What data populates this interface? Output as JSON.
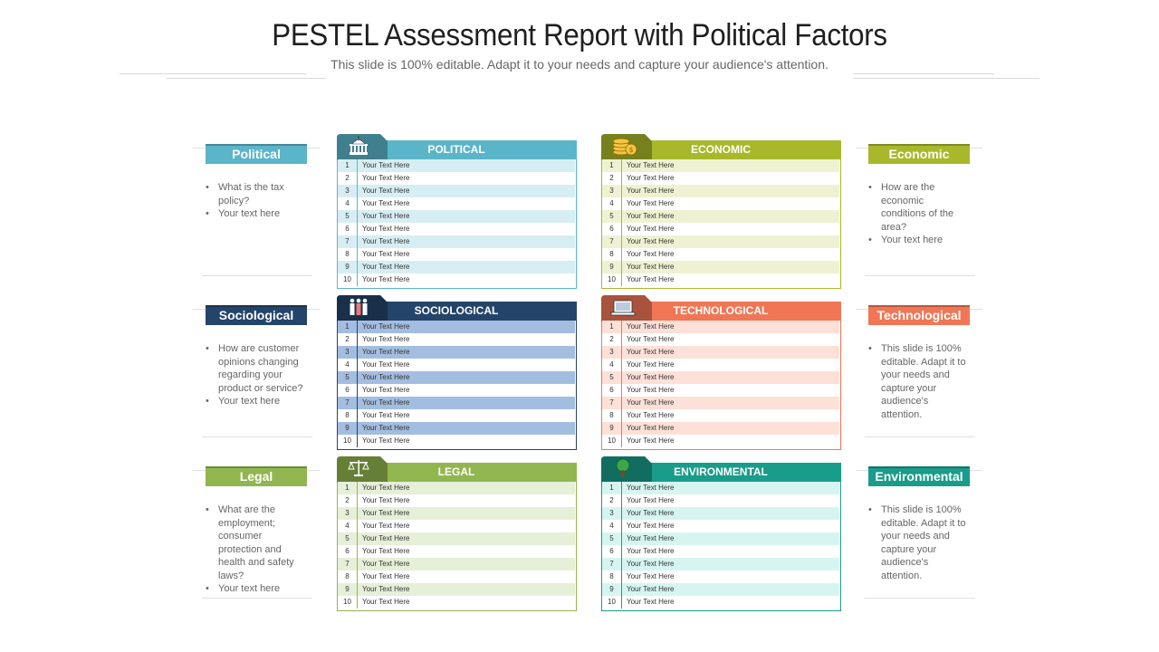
{
  "header": {
    "title": "PESTEL Assessment Report with Political Factors",
    "subtitle": "This slide is 100% editable. Adapt it to your needs and capture your audience's attention."
  },
  "colors": {
    "political": "#5bb5c9",
    "political_stripe": "#d6eef3",
    "economic": "#a9b82a",
    "economic_stripe": "#eff2d2",
    "sociological": "#24446a",
    "sociological_stripe": "#a3bde0",
    "technological": "#f07656",
    "technological_stripe": "#fde0d8",
    "legal": "#91b64f",
    "legal_stripe": "#e6efd8",
    "environmental": "#1a9c8a",
    "environmental_stripe": "#d6f5f1"
  },
  "side": {
    "political": {
      "label": "Political",
      "bullets": [
        "What is the tax policy?",
        "Your text here"
      ]
    },
    "sociological": {
      "label": "Sociological",
      "bullets": [
        "How are customer opinions changing regarding your product or service?",
        "Your text here"
      ]
    },
    "legal": {
      "label": "Legal",
      "bullets": [
        "What are the employment; consumer protection and health and safety laws?",
        "Your text here"
      ]
    },
    "economic": {
      "label": "Economic",
      "bullets": [
        "How are the economic conditions of the area?",
        "Your text here"
      ]
    },
    "technological": {
      "label": "Technological",
      "bullets": [
        "This slide is 100% editable. Adapt it to your needs and capture your audience's attention."
      ]
    },
    "environmental": {
      "label": "Environmental",
      "bullets": [
        "This slide is 100% editable. Adapt it to your needs and capture your audience's attention."
      ]
    }
  },
  "panels": {
    "political": {
      "title": "POLITICAL",
      "icon": "capitol-building-icon",
      "rows": [
        "Your Text Here",
        "Your Text Here",
        "Your Text Here",
        "Your Text Here",
        "Your Text Here",
        "Your Text Here",
        "Your Text Here",
        "Your Text Here",
        "Your Text Here",
        "Your Text Here"
      ]
    },
    "economic": {
      "title": "ECONOMIC",
      "icon": "coins-icon",
      "rows": [
        "Your Text Here",
        "Your Text Here",
        "Your Text Here",
        "Your Text Here",
        "Your Text Here",
        "Your Text Here",
        "Your Text Here",
        "Your Text Here",
        "Your Text Here",
        "Your Text Here"
      ]
    },
    "sociological": {
      "title": "SOCIOLOGICAL",
      "icon": "people-icon",
      "rows": [
        "Your Text Here",
        "Your Text Here",
        "Your Text Here",
        "Your Text Here",
        "Your Text Here",
        "Your Text Here",
        "Your Text Here",
        "Your Text Here",
        "Your Text Here",
        "Your Text Here"
      ]
    },
    "technological": {
      "title": "TECHNOLOGICAL",
      "icon": "laptop-icon",
      "rows": [
        "Your Text Here",
        "Your Text Here",
        "Your Text Here",
        "Your Text Here",
        "Your Text Here",
        "Your Text Here",
        "Your Text Here",
        "Your Text Here",
        "Your Text Here",
        "Your Text Here"
      ]
    },
    "legal": {
      "title": "LEGAL",
      "icon": "scales-icon",
      "rows": [
        "Your Text Here",
        "Your Text Here",
        "Your Text Here",
        "Your Text Here",
        "Your Text Here",
        "Your Text Here",
        "Your Text Here",
        "Your Text Here",
        "Your Text Here",
        "Your Text Here"
      ]
    },
    "environmental": {
      "title": "ENVIRONMENTAL",
      "icon": "tree-icon",
      "rows": [
        "Your Text Here",
        "Your Text Here",
        "Your Text Here",
        "Your Text Here",
        "Your Text Here",
        "Your Text Here",
        "Your Text Here",
        "Your Text Here",
        "Your Text Here",
        "Your Text Here"
      ]
    }
  },
  "row_numbers": [
    "1",
    "2",
    "3",
    "4",
    "5",
    "6",
    "7",
    "8",
    "9",
    "10"
  ]
}
